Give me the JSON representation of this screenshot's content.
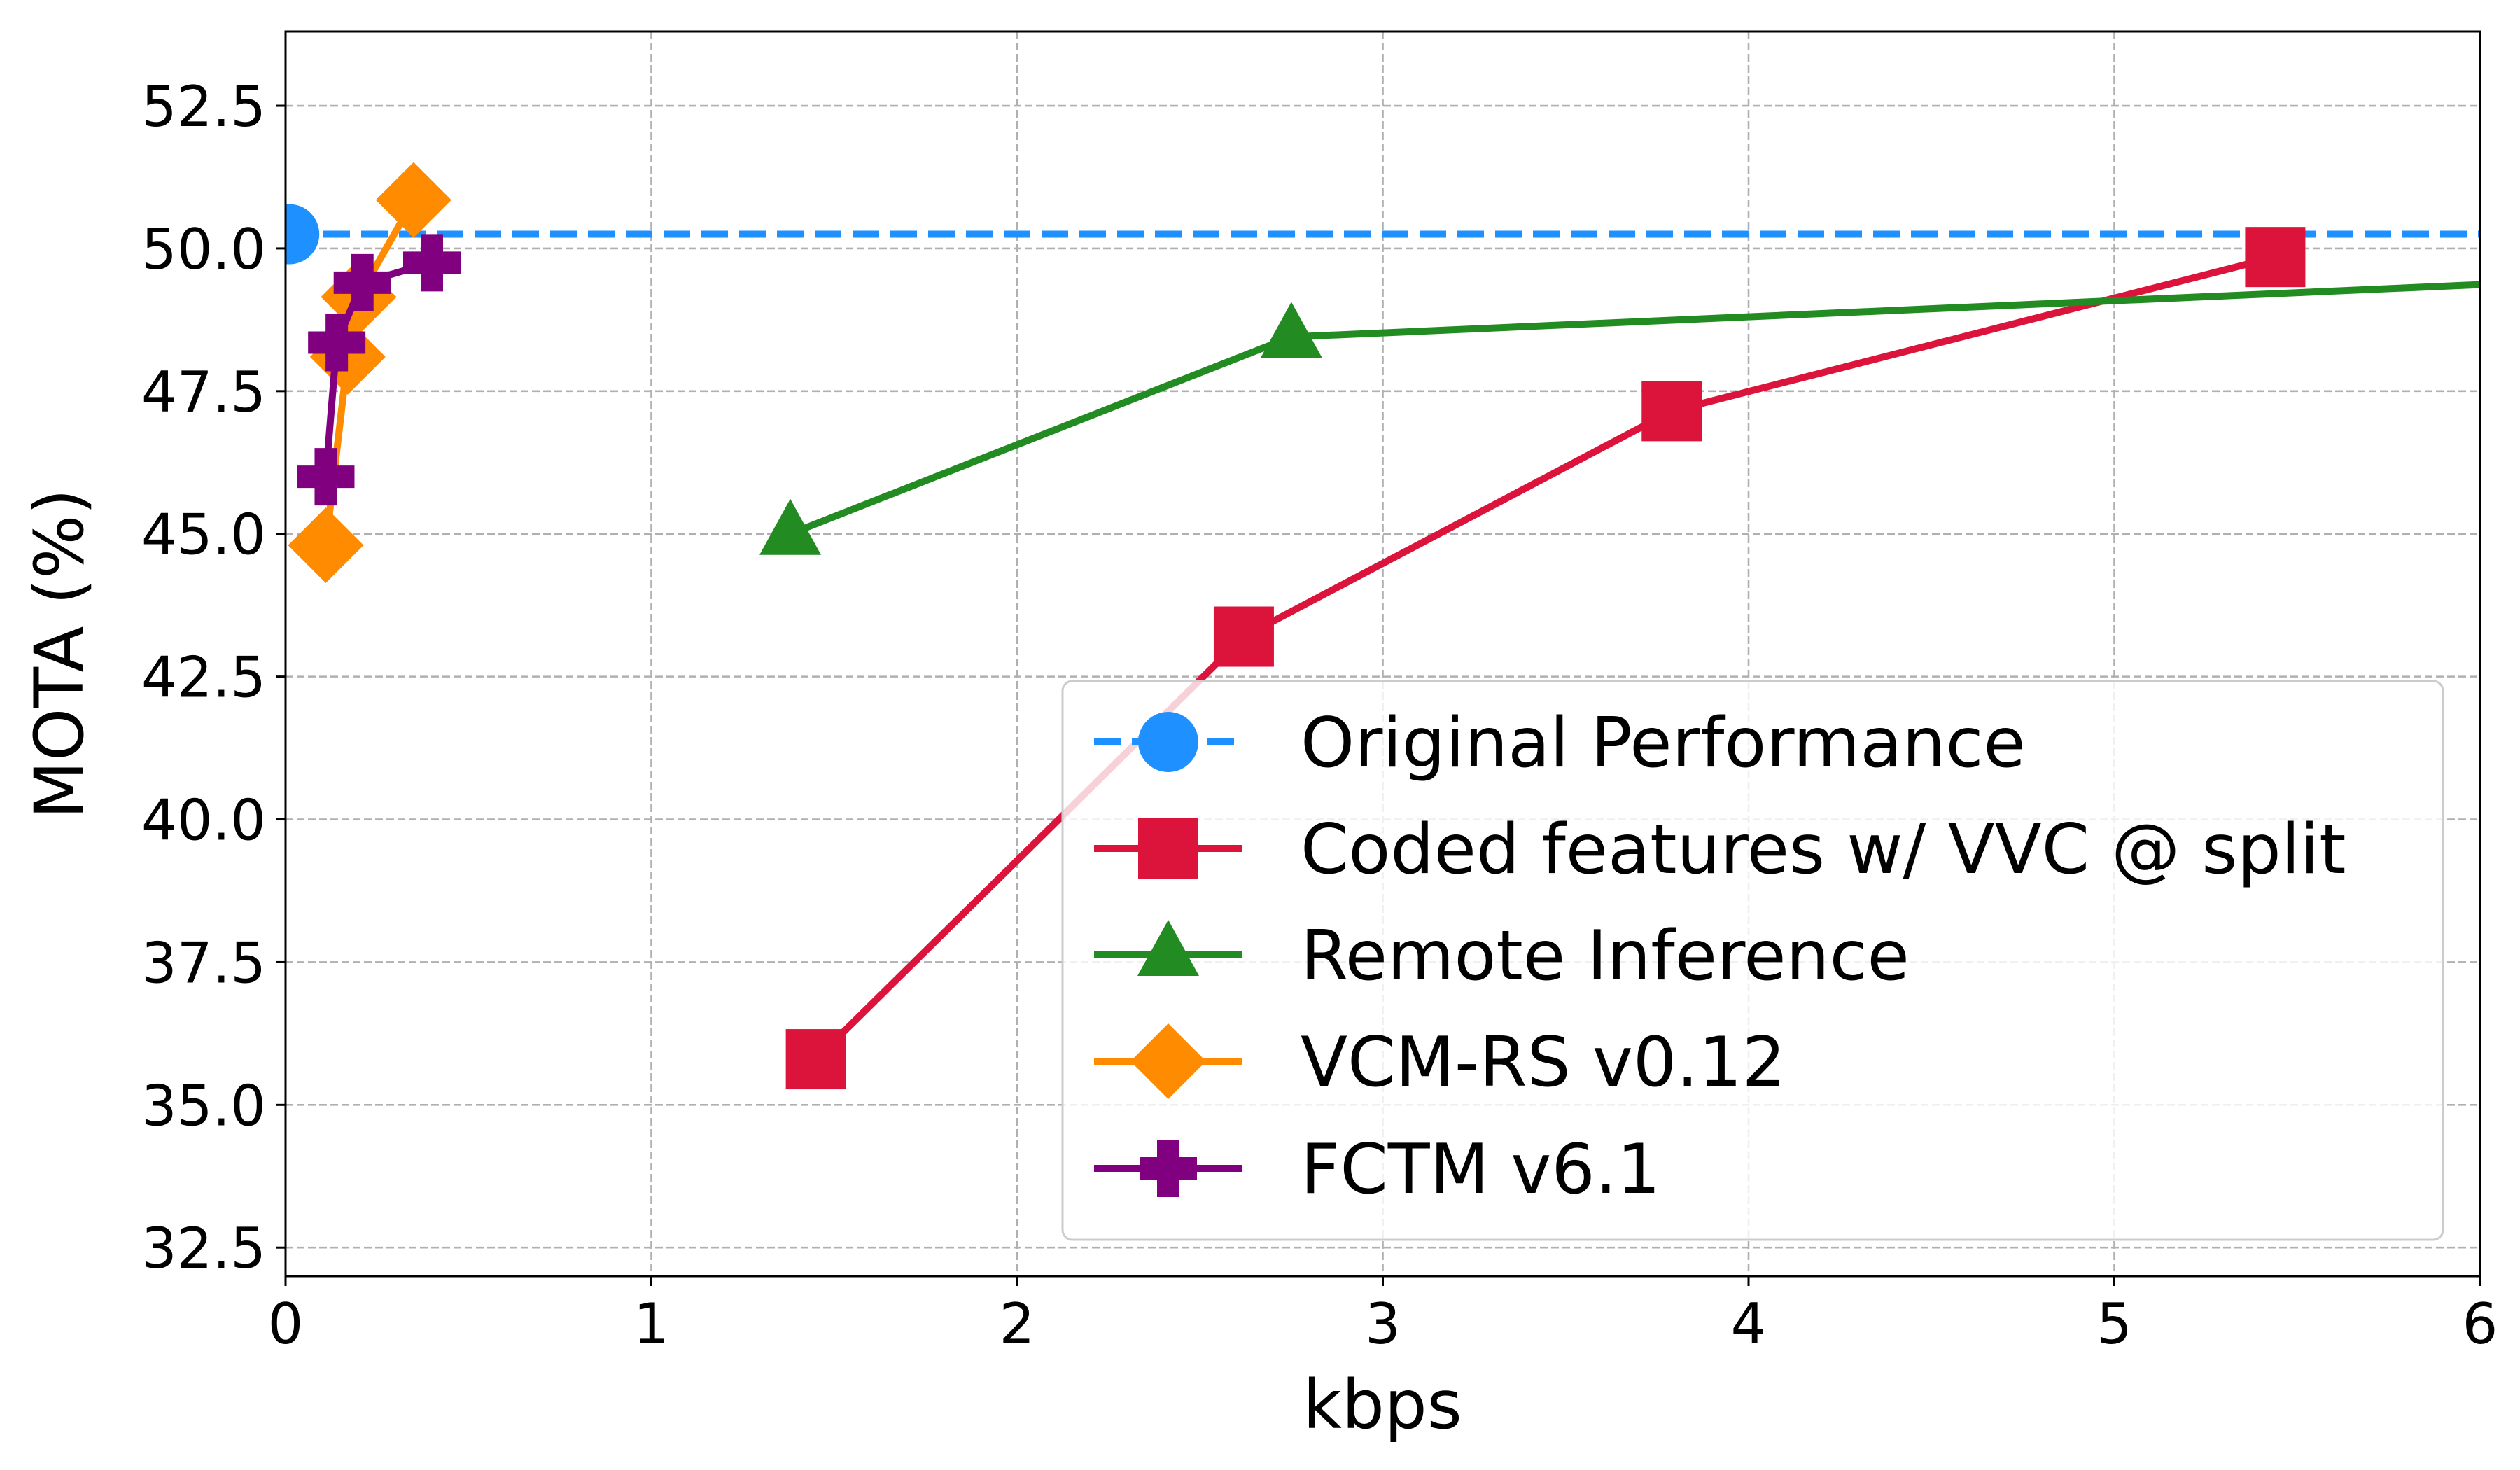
{
  "chart_data": {
    "type": "line",
    "xlabel": "kbps",
    "ylabel": "MOTA (%)",
    "xlim": [
      0,
      6
    ],
    "ylim": [
      32,
      53.8
    ],
    "xticks": [
      0,
      1,
      2,
      3,
      4,
      5,
      6
    ],
    "xtick_labels": [
      "0",
      "1",
      "2",
      "3",
      "4",
      "5",
      "6"
    ],
    "yticks": [
      32.5,
      35.0,
      37.5,
      40.0,
      42.5,
      45.0,
      47.5,
      50.0,
      52.5
    ],
    "ytick_labels": [
      "32.5",
      "35.0",
      "37.5",
      "40.0",
      "42.5",
      "45.0",
      "47.5",
      "50.0",
      "52.5"
    ],
    "grid": true,
    "legend_position": "lower-right",
    "series": [
      {
        "name": "Original Performance",
        "color": "#1e90ff",
        "marker": "circle",
        "line_style": "dashed",
        "horizontal_line": 50.25,
        "x": [
          0.01
        ],
        "y": [
          50.25
        ]
      },
      {
        "name": "Coded features w/ VVC @ split",
        "color": "#dc143c",
        "marker": "square",
        "line_style": "solid",
        "x": [
          1.45,
          2.62,
          3.79,
          5.44
        ],
        "y": [
          35.8,
          43.2,
          47.15,
          49.85
        ]
      },
      {
        "name": "Remote Inference",
        "color": "#228b22",
        "marker": "triangle",
        "line_style": "solid",
        "x": [
          1.38,
          2.75,
          6.3
        ],
        "y": [
          45.0,
          48.45,
          49.45
        ]
      },
      {
        "name": "VCM-RS v0.12",
        "color": "#ff8c00",
        "marker": "diamond",
        "line_style": "solid",
        "x": [
          0.11,
          0.17,
          0.2,
          0.35
        ],
        "y": [
          44.8,
          48.1,
          49.15,
          50.85
        ]
      },
      {
        "name": "FCTM v6.1",
        "color": "#800080",
        "marker": "plus",
        "line_style": "solid",
        "x": [
          0.11,
          0.14,
          0.21,
          0.4
        ],
        "y": [
          46.0,
          48.35,
          49.4,
          49.75
        ]
      }
    ]
  }
}
